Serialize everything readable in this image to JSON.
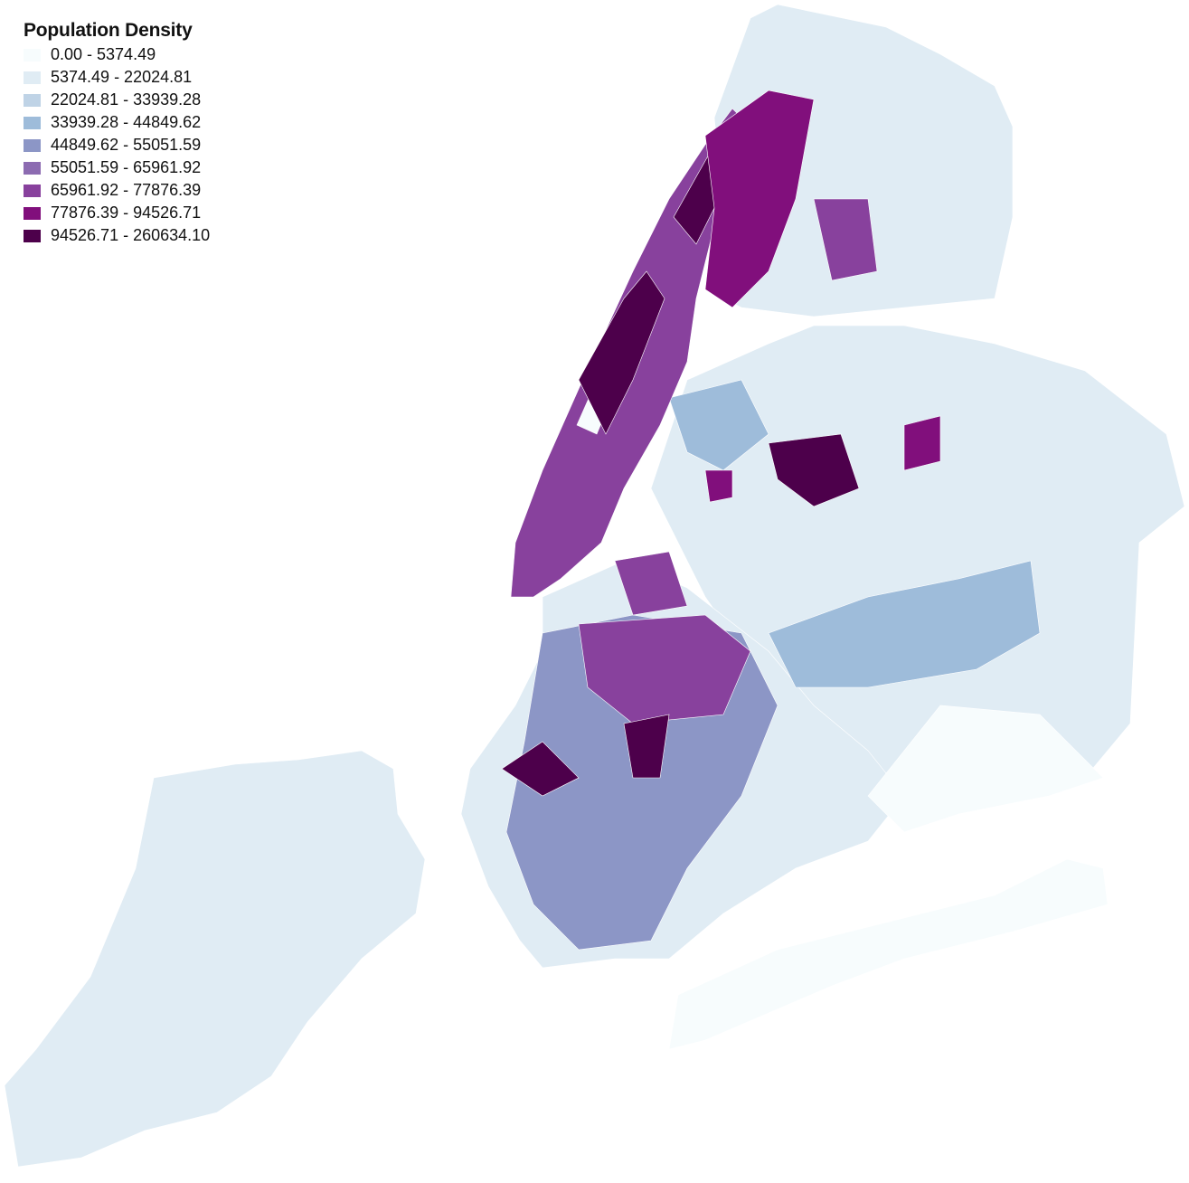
{
  "legend": {
    "title": "Population Density",
    "classes": [
      {
        "label": "0.00 - 5374.49",
        "color": "#f7fcfd"
      },
      {
        "label": "5374.49 - 22024.81",
        "color": "#e0ecf4"
      },
      {
        "label": "22024.81 - 33939.28",
        "color": "#bfd3e6"
      },
      {
        "label": "33939.28 - 44849.62",
        "color": "#9ebcda"
      },
      {
        "label": "44849.62 - 55051.59",
        "color": "#8c96c6"
      },
      {
        "label": "55051.59 - 65961.92",
        "color": "#8c6bb1"
      },
      {
        "label": "65961.92 - 77876.39",
        "color": "#88419d"
      },
      {
        "label": "77876.39 - 94526.71",
        "color": "#810f7c"
      },
      {
        "label": "94526.71 - 260634.10",
        "color": "#4d004b"
      }
    ]
  }
}
